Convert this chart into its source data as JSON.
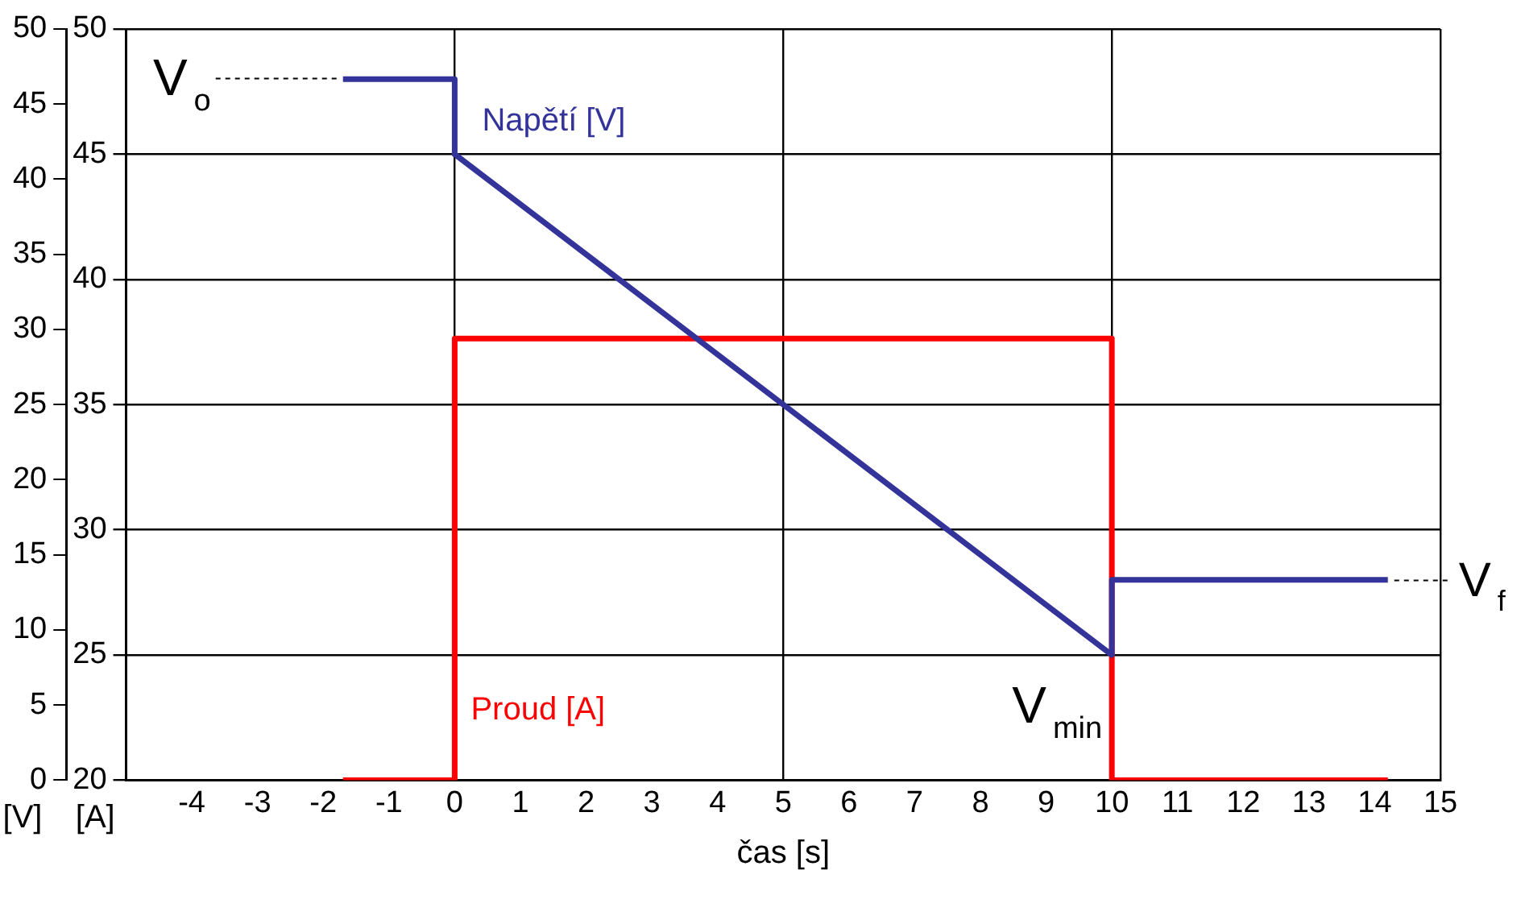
{
  "chart_data": {
    "type": "line",
    "xlabel": "čas [s]",
    "ylabel": "[V]",
    "y2label": "[A]",
    "xlim": [
      -5,
      15
    ],
    "xticks": [
      -4,
      -3,
      -2,
      -1,
      0,
      1,
      2,
      3,
      4,
      5,
      6,
      7,
      8,
      9,
      10,
      11,
      12,
      13,
      14,
      15
    ],
    "ylim": [
      0,
      50
    ],
    "yticks": [
      0,
      5,
      10,
      15,
      20,
      25,
      30,
      35,
      40,
      45,
      50
    ],
    "y2lim": [
      20,
      50
    ],
    "y2ticks": [
      20,
      25,
      30,
      35,
      40,
      45,
      50
    ],
    "grid": true,
    "legend": false,
    "marker": "none",
    "line_style": "solid",
    "series": [
      {
        "name": "Napětí [V]",
        "color": "#333399",
        "axis": "y2",
        "x": [
          -1.7,
          0,
          0,
          10,
          10,
          14.2
        ],
        "values": [
          48,
          48,
          45,
          25,
          28,
          28
        ]
      },
      {
        "name": "Proud [A]",
        "color": "#ff0000",
        "axis": "y",
        "x": [
          -1.7,
          0,
          0,
          10,
          10,
          14.2
        ],
        "values": [
          0,
          0,
          29.4,
          29.4,
          0,
          0
        ]
      }
    ],
    "annotations": [
      {
        "text": "V$_{o}$",
        "x": -1.7,
        "y": 46.7
      },
      "V$_{min}$",
      {
        "text": "V$_{f}$",
        "x": 14.2,
        "y": 13.3
      }
    ]
  }
}
